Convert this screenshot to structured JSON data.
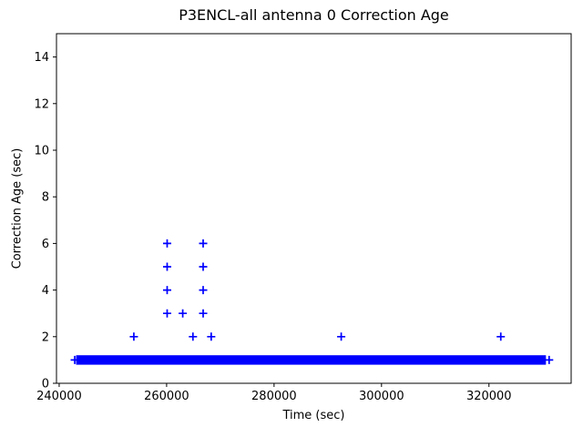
{
  "figure": {
    "background": "#ffffff",
    "frame_color": "#000000"
  },
  "chart_data": {
    "type": "scatter",
    "title": "P3ENCL-all antenna 0 Correction Age",
    "xlabel": "Time (sec)",
    "ylabel": "Correction Age (sec)",
    "xlim": [
      239500,
      335300
    ],
    "ylim": [
      0,
      15
    ],
    "xticks": [
      240000,
      260000,
      280000,
      300000,
      320000
    ],
    "yticks": [
      0,
      2,
      4,
      6,
      8,
      10,
      12,
      14
    ],
    "grid": false,
    "legend": "none",
    "marker": "+",
    "marker_color": "#0000ff",
    "series": [
      {
        "name": "baseline-dense-run",
        "render": "band",
        "description": "continuous dense run of + markers at ~1 sec correction age",
        "y": 1,
        "x_start": 242900,
        "x_end": 331200
      },
      {
        "name": "outlier-points",
        "render": "points",
        "points": [
          {
            "x": 253900,
            "y": 2
          },
          {
            "x": 260100,
            "y": 3
          },
          {
            "x": 260100,
            "y": 4
          },
          {
            "x": 260100,
            "y": 5
          },
          {
            "x": 260100,
            "y": 6
          },
          {
            "x": 263000,
            "y": 3
          },
          {
            "x": 264900,
            "y": 2
          },
          {
            "x": 266800,
            "y": 3
          },
          {
            "x": 266800,
            "y": 4
          },
          {
            "x": 266800,
            "y": 5
          },
          {
            "x": 266800,
            "y": 6
          },
          {
            "x": 268300,
            "y": 2
          },
          {
            "x": 292500,
            "y": 2
          },
          {
            "x": 322200,
            "y": 2
          }
        ]
      }
    ]
  }
}
